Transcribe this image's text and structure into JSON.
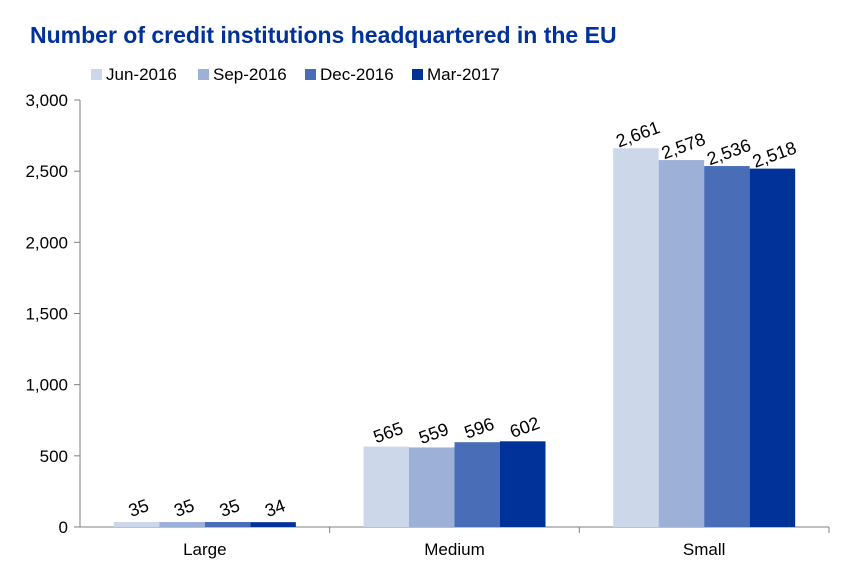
{
  "chart_data": {
    "type": "bar",
    "title": "Number of credit institutions headquartered in the EU",
    "xlabel": "",
    "ylabel": "",
    "categories": [
      "Large",
      "Medium",
      "Small"
    ],
    "series": [
      {
        "name": "Jun-2016",
        "color": "#CDD7EA",
        "values": [
          35,
          565,
          2661
        ],
        "labels": [
          "35",
          "565",
          "2,661"
        ]
      },
      {
        "name": "Sep-2016",
        "color": "#9DB0D8",
        "values": [
          35,
          559,
          2578
        ],
        "labels": [
          "35",
          "559",
          "2,578"
        ]
      },
      {
        "name": "Dec-2016",
        "color": "#4A6DB8",
        "values": [
          35,
          596,
          2536
        ],
        "labels": [
          "35",
          "596",
          "2,536"
        ]
      },
      {
        "name": "Mar-2017",
        "color": "#003299",
        "values": [
          34,
          602,
          2518
        ],
        "labels": [
          "34",
          "602",
          "2,518"
        ]
      }
    ],
    "ylim": [
      0,
      3000
    ],
    "yticks": [
      0,
      500,
      1000,
      1500,
      2000,
      2500,
      3000
    ],
    "ytick_labels": [
      "0",
      "500",
      "1,000",
      "1,500",
      "2,000",
      "2,500",
      "3,000"
    ],
    "legend_position": "top",
    "grid": false,
    "title_color": "#003299"
  }
}
